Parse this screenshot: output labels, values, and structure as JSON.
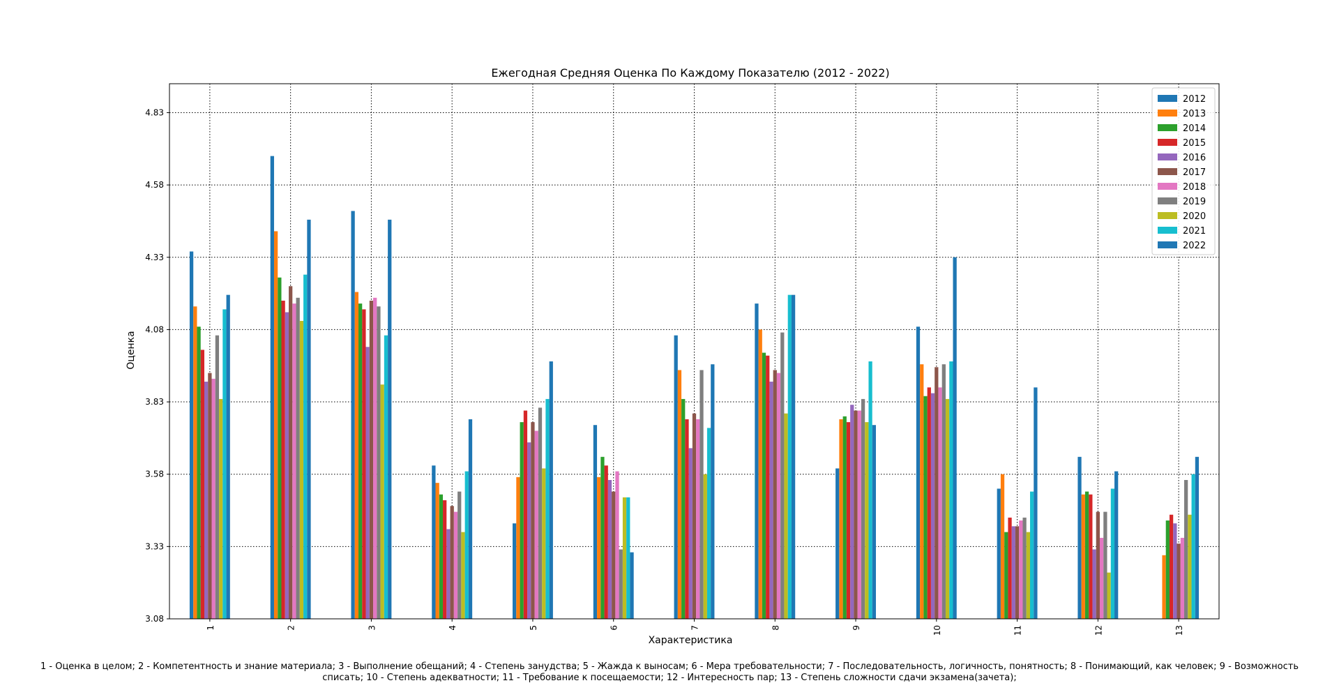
{
  "chart_data": {
    "type": "bar",
    "title": "Ежегодная Средняя Оценка По Каждому Показателю (2012 - 2022)",
    "xlabel": "Характеристика",
    "ylabel": "Оценка",
    "categories": [
      "1",
      "2",
      "3",
      "4",
      "5",
      "6",
      "7",
      "8",
      "9",
      "10",
      "11",
      "12",
      "13"
    ],
    "ylim": [
      3.08,
      4.93
    ],
    "yticks": [
      "3.08",
      "3.33",
      "3.58",
      "3.83",
      "4.08",
      "4.33",
      "4.58",
      "4.83"
    ],
    "grid": true,
    "grid_style": "dotted",
    "legend_position": "top-right",
    "series": [
      {
        "name": "2012",
        "color": "#1f77b4",
        "values": [
          4.35,
          4.68,
          4.49,
          3.61,
          3.41,
          3.75,
          4.06,
          4.17,
          3.6,
          4.09,
          3.53,
          3.64,
          null
        ]
      },
      {
        "name": "2013",
        "color": "#ff7f0e",
        "values": [
          4.16,
          4.42,
          4.21,
          3.55,
          3.57,
          3.57,
          3.94,
          4.08,
          3.77,
          3.96,
          3.58,
          3.51,
          3.3
        ]
      },
      {
        "name": "2014",
        "color": "#2ca02c",
        "values": [
          4.09,
          4.26,
          4.17,
          3.51,
          3.76,
          3.64,
          3.84,
          4.0,
          3.78,
          3.85,
          3.38,
          3.52,
          3.42
        ]
      },
      {
        "name": "2015",
        "color": "#d62728",
        "values": [
          4.01,
          4.18,
          4.15,
          3.49,
          3.8,
          3.61,
          3.77,
          3.99,
          3.76,
          3.88,
          3.43,
          3.51,
          3.44
        ]
      },
      {
        "name": "2016",
        "color": "#9467bd",
        "values": [
          3.9,
          4.14,
          4.02,
          3.39,
          3.69,
          3.56,
          3.67,
          3.9,
          3.82,
          3.86,
          3.4,
          3.32,
          3.41
        ]
      },
      {
        "name": "2017",
        "color": "#8c564b",
        "values": [
          3.93,
          4.23,
          4.18,
          3.47,
          3.76,
          3.52,
          3.79,
          3.94,
          3.8,
          3.95,
          3.4,
          3.45,
          3.34
        ]
      },
      {
        "name": "2018",
        "color": "#e377c2",
        "values": [
          3.91,
          4.17,
          4.19,
          3.45,
          3.73,
          3.59,
          3.77,
          3.93,
          3.8,
          3.88,
          3.42,
          3.36,
          3.36
        ]
      },
      {
        "name": "2019",
        "color": "#7f7f7f",
        "values": [
          4.06,
          4.19,
          4.16,
          3.52,
          3.81,
          3.32,
          3.94,
          4.07,
          3.84,
          3.96,
          3.43,
          3.45,
          3.56
        ]
      },
      {
        "name": "2020",
        "color": "#bcbd22",
        "values": [
          3.84,
          4.11,
          3.89,
          3.38,
          3.6,
          3.5,
          3.58,
          3.79,
          3.76,
          3.84,
          3.38,
          3.24,
          3.44
        ]
      },
      {
        "name": "2021",
        "color": "#17becf",
        "values": [
          4.15,
          4.27,
          4.06,
          3.59,
          3.84,
          3.5,
          3.74,
          4.2,
          3.97,
          3.97,
          3.52,
          3.53,
          3.58
        ]
      },
      {
        "name": "2022",
        "color": "#1f77b4",
        "values": [
          4.2,
          4.46,
          4.46,
          3.77,
          3.97,
          3.31,
          3.96,
          4.2,
          3.75,
          4.33,
          3.88,
          3.59,
          3.64
        ]
      }
    ],
    "footnote": "1 - Оценка в целом; 2 - Компетентность и знание материала; 3 - Выполнение обещаний; 4 - Степень занудства; 5 - Жажда к выносам; 6 - Мера требовательности; 7 - Последовательность, логичность, понятность; 8 - Понимающий, как человек; 9 - Возможность списать; 10 - Степень адекватности; 11 - Требование к посещаемости; 12 - Интересность пар; 13 - Степень сложности сдачи экзамена(зачета);"
  }
}
